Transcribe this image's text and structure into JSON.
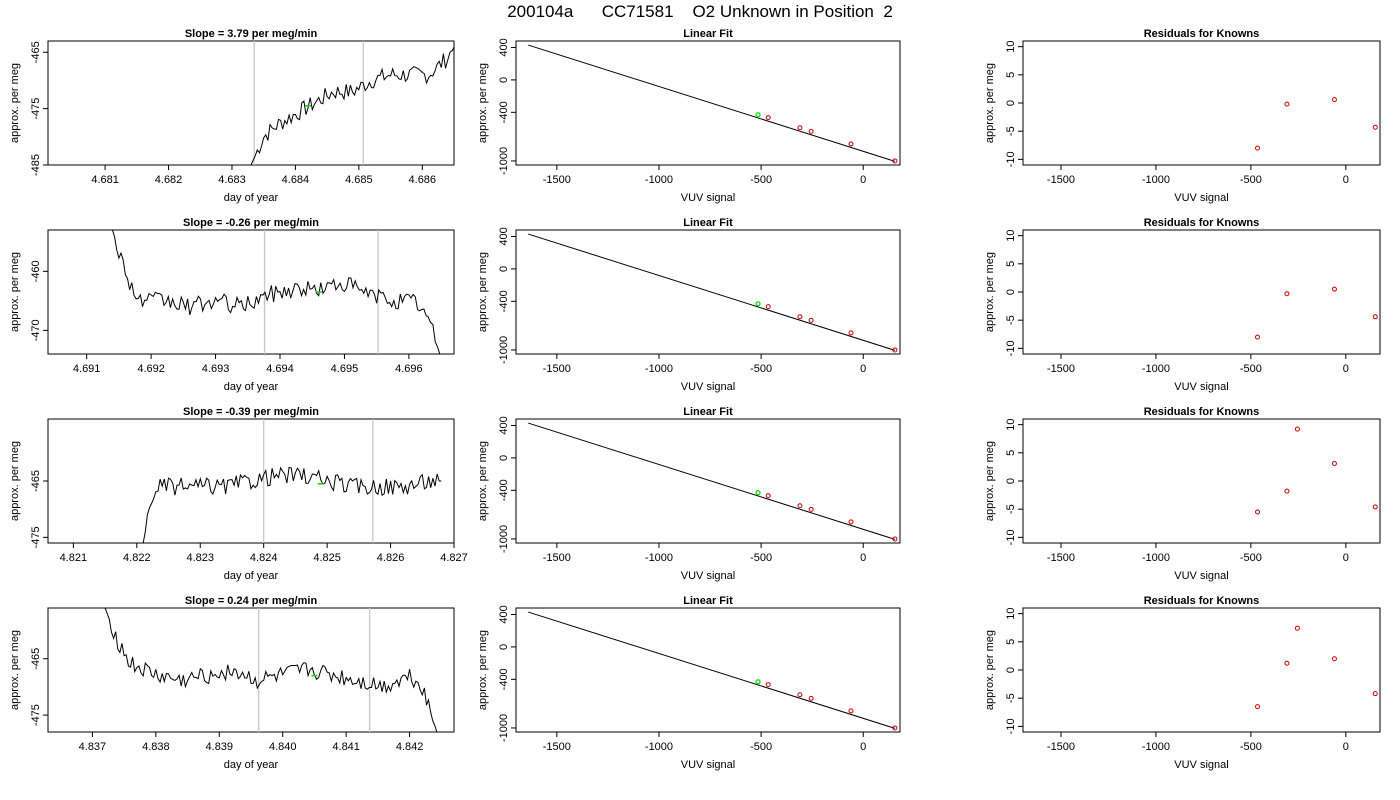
{
  "figure_title": "200104a      CC71581    O2 Unknown in Position  2",
  "colors": {
    "trace": "#000000",
    "vline": "#c8c8c8",
    "marker_green": "#00dd00",
    "marker_red": "#cc0000",
    "fit_line": "#000000"
  },
  "chart_data": [
    {
      "type": "line",
      "row": 0,
      "col": 0,
      "title": "Slope =  3.79  per meg/min",
      "xlabel": "day of year",
      "ylabel": "approx. per meg",
      "xlim": [
        4.6801,
        4.6865
      ],
      "ylim": [
        -485,
        -463
      ],
      "xticks": [
        4.681,
        4.682,
        4.683,
        4.684,
        4.685,
        4.686
      ],
      "yticks": [
        -465,
        -475,
        -485
      ],
      "vlines": [
        4.68335,
        4.68507
      ],
      "marker": {
        "x": 4.6842,
        "y": -474.5
      },
      "series": [
        {
          "x": [
            4.6833,
            4.6835,
            4.6837,
            4.684,
            4.6843,
            4.6846,
            4.6849,
            4.6852,
            4.6855,
            4.6858,
            4.6861,
            4.6864,
            4.68655
          ],
          "y": [
            -485,
            -480,
            -478,
            -476,
            -474,
            -472,
            -472,
            -470,
            -469,
            -469,
            -469,
            -466,
            -463
          ]
        }
      ]
    },
    {
      "type": "line",
      "row": 0,
      "col": 1,
      "title": "Linear Fit",
      "xlabel": "VUV signal",
      "ylabel": "approx. per meg",
      "xlim": [
        -1700,
        180
      ],
      "ylim": [
        -1050,
        480
      ],
      "xticks": [
        -1500,
        -1000,
        -500,
        0
      ],
      "yticks": [
        400,
        0,
        -400,
        -1000
      ],
      "fit": {
        "x1": -1640,
        "y1": 430,
        "x2": 155,
        "y2": -1005
      },
      "knowns": {
        "x": [
          -465,
          -310,
          -255,
          -60,
          155
        ],
        "y": [
          -465,
          -590,
          -635,
          -790,
          -1000
        ]
      },
      "unknown": {
        "x": -515,
        "y": -430
      }
    },
    {
      "type": "scatter",
      "row": 0,
      "col": 2,
      "title": "Residuals for Knowns",
      "xlabel": "VUV signal",
      "ylabel": "approx. per meg",
      "xlim": [
        -1700,
        180
      ],
      "ylim": [
        -11,
        11
      ],
      "xticks": [
        -1500,
        -1000,
        -500,
        0
      ],
      "yticks": [
        10,
        5,
        0,
        -5,
        -10
      ],
      "points": {
        "x": [
          -465,
          -310,
          -60,
          155
        ],
        "y": [
          -8,
          -0.2,
          0.6,
          -4.3
        ]
      }
    },
    {
      "type": "line",
      "row": 1,
      "col": 0,
      "title": "Slope =  -0.26  per meg/min",
      "xlabel": "day of year",
      "ylabel": "approx. per meg",
      "xlim": [
        4.6904,
        4.6967
      ],
      "ylim": [
        -474,
        -453
      ],
      "xticks": [
        4.691,
        4.692,
        4.693,
        4.694,
        4.695,
        4.696
      ],
      "yticks": [
        -460,
        -470
      ],
      "vlines": [
        4.69376,
        4.69552
      ],
      "marker": {
        "x": 4.6946,
        "y": -463.5
      },
      "series": [
        {
          "x": [
            4.6914,
            4.6916,
            4.6918,
            4.6922,
            4.6926,
            4.693,
            4.6934,
            4.6938,
            4.6942,
            4.6946,
            4.695,
            4.6954,
            4.6958,
            4.6961,
            4.6963,
            4.69648
          ],
          "y": [
            -453,
            -460,
            -465,
            -465,
            -466,
            -465,
            -466,
            -464,
            -463,
            -463,
            -462,
            -464,
            -465,
            -465,
            -468,
            -474
          ]
        }
      ]
    },
    {
      "type": "line",
      "row": 1,
      "col": 1,
      "title": "Linear Fit",
      "xlabel": "VUV signal",
      "ylabel": "approx. per meg",
      "xlim": [
        -1700,
        180
      ],
      "ylim": [
        -1050,
        480
      ],
      "xticks": [
        -1500,
        -1000,
        -500,
        0
      ],
      "yticks": [
        400,
        0,
        -400,
        -1000
      ],
      "fit": {
        "x1": -1640,
        "y1": 430,
        "x2": 155,
        "y2": -1005
      },
      "knowns": {
        "x": [
          -465,
          -310,
          -255,
          -60,
          155
        ],
        "y": [
          -465,
          -590,
          -635,
          -790,
          -1000
        ]
      },
      "unknown": {
        "x": -515,
        "y": -430
      }
    },
    {
      "type": "scatter",
      "row": 1,
      "col": 2,
      "title": "Residuals for Knowns",
      "xlabel": "VUV signal",
      "ylabel": "approx. per meg",
      "xlim": [
        -1700,
        180
      ],
      "ylim": [
        -11,
        11
      ],
      "xticks": [
        -1500,
        -1000,
        -500,
        0
      ],
      "yticks": [
        10,
        5,
        0,
        -5,
        -10
      ],
      "points": {
        "x": [
          -465,
          -310,
          -60,
          155
        ],
        "y": [
          -8,
          -0.3,
          0.5,
          -4.4
        ]
      }
    },
    {
      "type": "line",
      "row": 2,
      "col": 0,
      "title": "Slope =  -0.39  per meg/min",
      "xlabel": "day of year",
      "ylabel": "approx. per meg",
      "xlim": [
        4.8206,
        4.827
      ],
      "ylim": [
        -476,
        -454
      ],
      "xticks": [
        4.821,
        4.822,
        4.823,
        4.824,
        4.825,
        4.826,
        4.827
      ],
      "yticks": [
        -465,
        -475
      ],
      "vlines": [
        4.824,
        4.82572
      ],
      "marker": {
        "x": 4.8249,
        "y": -465.5
      },
      "series": [
        {
          "x": [
            4.8221,
            4.8222,
            4.8223,
            4.8226,
            4.823,
            4.8234,
            4.8238,
            4.8242,
            4.8246,
            4.825,
            4.8254,
            4.8258,
            4.8262,
            4.8266,
            4.8268
          ],
          "y": [
            -476,
            -470,
            -466,
            -466,
            -466,
            -466,
            -465,
            -464,
            -464,
            -465,
            -466,
            -466,
            -466,
            -465,
            -465
          ]
        }
      ]
    },
    {
      "type": "line",
      "row": 2,
      "col": 1,
      "title": "Linear Fit",
      "xlabel": "VUV signal",
      "ylabel": "approx. per meg",
      "xlim": [
        -1700,
        180
      ],
      "ylim": [
        -1050,
        480
      ],
      "xticks": [
        -1500,
        -1000,
        -500,
        0
      ],
      "yticks": [
        400,
        0,
        -400,
        -1000
      ],
      "fit": {
        "x1": -1640,
        "y1": 430,
        "x2": 155,
        "y2": -1005
      },
      "knowns": {
        "x": [
          -465,
          -310,
          -255,
          -60,
          155
        ],
        "y": [
          -465,
          -590,
          -635,
          -790,
          -1000
        ]
      },
      "unknown": {
        "x": -515,
        "y": -430
      }
    },
    {
      "type": "scatter",
      "row": 2,
      "col": 2,
      "title": "Residuals for Knowns",
      "xlabel": "VUV signal",
      "ylabel": "approx. per meg",
      "xlim": [
        -1700,
        180
      ],
      "ylim": [
        -11,
        11
      ],
      "xticks": [
        -1500,
        -1000,
        -500,
        0
      ],
      "yticks": [
        10,
        5,
        0,
        -5,
        -10
      ],
      "points": {
        "x": [
          -465,
          -310,
          -255,
          -60,
          155
        ],
        "y": [
          -5.5,
          -1.8,
          9.2,
          3.1,
          -4.6
        ]
      }
    },
    {
      "type": "line",
      "row": 3,
      "col": 0,
      "title": "Slope =  0.24  per meg/min",
      "xlabel": "day of year",
      "ylabel": "approx. per meg",
      "xlim": [
        4.8363,
        4.8427
      ],
      "ylim": [
        -478,
        -456
      ],
      "xticks": [
        4.837,
        4.838,
        4.839,
        4.84,
        4.841,
        4.842
      ],
      "yticks": [
        -465,
        -475
      ],
      "vlines": [
        4.83962,
        4.84137
      ],
      "marker": {
        "x": 4.8405,
        "y": -468
      },
      "series": [
        {
          "x": [
            4.8372,
            4.8374,
            4.8376,
            4.838,
            4.8384,
            4.8388,
            4.8392,
            4.8396,
            4.84,
            4.8404,
            4.8408,
            4.8412,
            4.8416,
            4.842,
            4.8422,
            4.84243
          ],
          "y": [
            -456,
            -462,
            -466,
            -468,
            -469,
            -468,
            -467,
            -469,
            -468,
            -467,
            -468,
            -469,
            -470,
            -468,
            -470,
            -478
          ]
        }
      ]
    },
    {
      "type": "line",
      "row": 3,
      "col": 1,
      "title": "Linear Fit",
      "xlabel": "VUV signal",
      "ylabel": "approx. per meg",
      "xlim": [
        -1700,
        180
      ],
      "ylim": [
        -1050,
        480
      ],
      "xticks": [
        -1500,
        -1000,
        -500,
        0
      ],
      "yticks": [
        400,
        0,
        -400,
        -1000
      ],
      "fit": {
        "x1": -1640,
        "y1": 430,
        "x2": 155,
        "y2": -1005
      },
      "knowns": {
        "x": [
          -465,
          -310,
          -255,
          -60,
          155
        ],
        "y": [
          -465,
          -590,
          -635,
          -790,
          -1000
        ]
      },
      "unknown": {
        "x": -515,
        "y": -430
      }
    },
    {
      "type": "scatter",
      "row": 3,
      "col": 2,
      "title": "Residuals for Knowns",
      "xlabel": "VUV signal",
      "ylabel": "approx. per meg",
      "xlim": [
        -1700,
        180
      ],
      "ylim": [
        -11,
        11
      ],
      "xticks": [
        -1500,
        -1000,
        -500,
        0
      ],
      "yticks": [
        10,
        5,
        0,
        -5,
        -10
      ],
      "points": {
        "x": [
          -465,
          -310,
          -255,
          -60,
          155
        ],
        "y": [
          -6.5,
          1.2,
          7.4,
          2.0,
          -4.2
        ]
      }
    }
  ]
}
